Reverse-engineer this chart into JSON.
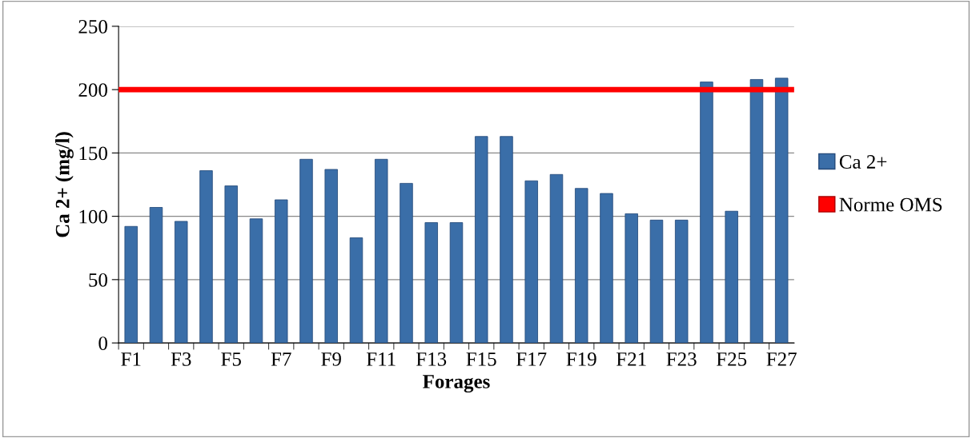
{
  "chart_data": {
    "type": "bar",
    "xlabel": "Forages",
    "ylabel": "Ca 2+ (mg/l)",
    "categories": [
      "F1",
      null,
      "F3",
      null,
      "F5",
      null,
      "F7",
      null,
      "F9",
      null,
      "F11",
      null,
      "F13",
      null,
      "F15",
      null,
      "F17",
      null,
      "F19",
      null,
      "F21",
      null,
      "F23",
      null,
      "F25",
      null,
      "F27"
    ],
    "series": [
      {
        "name": "Ca 2+",
        "color": "#3a6ea8",
        "values": [
          92,
          107,
          96,
          136,
          124,
          98,
          113,
          145,
          137,
          83,
          145,
          126,
          95,
          95,
          163,
          163,
          128,
          133,
          122,
          118,
          102,
          97,
          97,
          206,
          104,
          208,
          209
        ]
      }
    ],
    "ref_lines": [
      {
        "axis": "y",
        "value": 200,
        "label": "Norme OMS",
        "color": "#ff0000"
      }
    ],
    "ylim": [
      0,
      250
    ],
    "yticks": [
      0,
      50,
      100,
      150,
      200,
      250
    ],
    "grid": "y",
    "legend": "right"
  }
}
